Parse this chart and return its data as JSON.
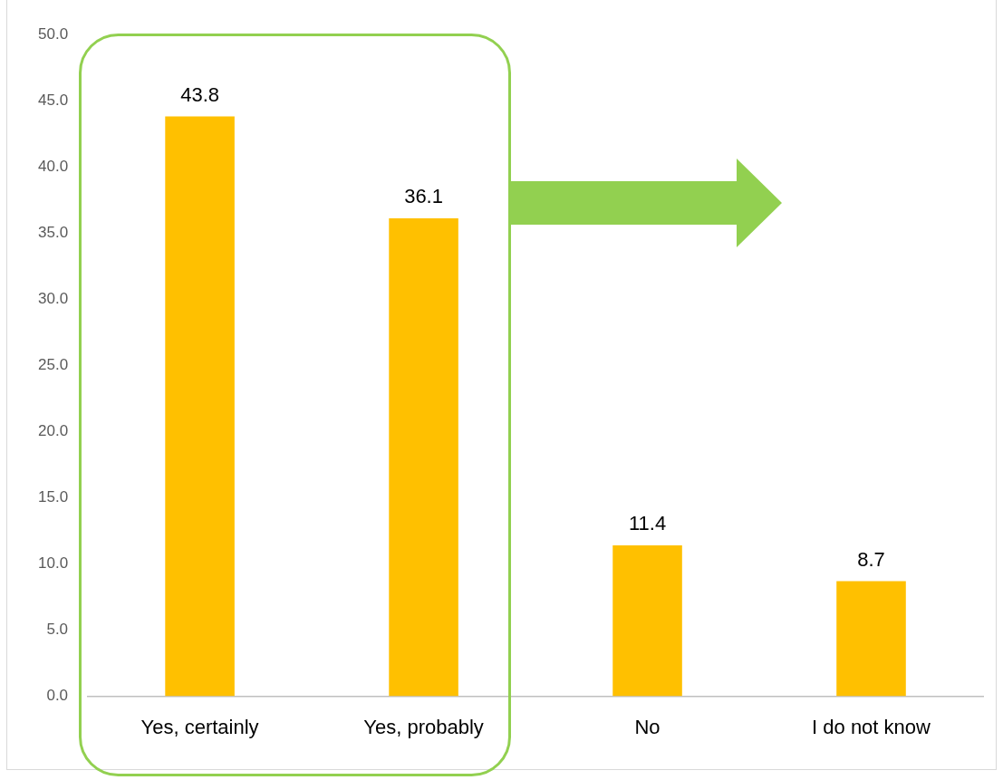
{
  "chart_data": {
    "type": "bar",
    "categories": [
      "Yes, certainly",
      "Yes, probably",
      "No",
      "I do not know"
    ],
    "values": [
      43.8,
      36.1,
      11.4,
      8.7
    ],
    "color": "#ffc000",
    "ylim": [
      0,
      50
    ],
    "yticks": [
      {
        "value": 0,
        "label": "0.0"
      },
      {
        "value": 5,
        "label": "5.0"
      },
      {
        "value": 10,
        "label": "10.0"
      },
      {
        "value": 15,
        "label": "15.0"
      },
      {
        "value": 20,
        "label": "20.0"
      },
      {
        "value": 25,
        "label": "25.0"
      },
      {
        "value": 30,
        "label": "30.0"
      },
      {
        "value": 35,
        "label": "35.0"
      },
      {
        "value": 40,
        "label": "40.0"
      },
      {
        "value": 45,
        "label": "45.0"
      },
      {
        "value": 50,
        "label": "50.0"
      }
    ],
    "data_labels": true
  }
}
